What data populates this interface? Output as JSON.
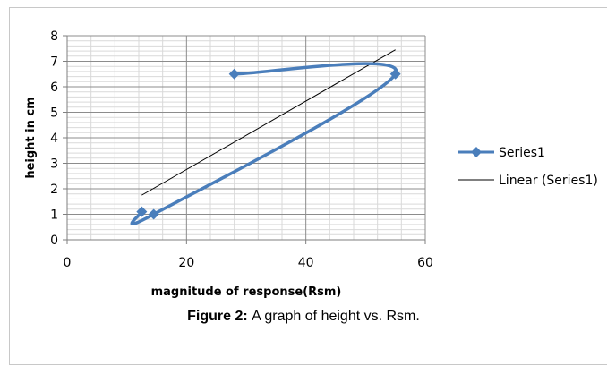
{
  "caption": {
    "label": "Figure 2:",
    "text": "A graph of height vs. Rsm."
  },
  "chart_data": {
    "type": "scatter",
    "xlabel": "magnitude of response(Rsm)",
    "ylabel": "height in cm",
    "xlim": [
      0,
      60
    ],
    "ylim": [
      0,
      8
    ],
    "x_ticks": [
      "0",
      "20",
      "40",
      "60"
    ],
    "y_ticks": [
      "0",
      "1",
      "2",
      "3",
      "4",
      "5",
      "6",
      "7",
      "8"
    ],
    "grid": true,
    "legend_position": "right",
    "series": [
      {
        "name": "Series1",
        "style": "smoothed line with diamond markers",
        "color": "#4a7ebb",
        "points": [
          [
            12.5,
            1.1
          ],
          [
            14.5,
            1.0
          ],
          [
            55,
            6.5
          ],
          [
            28,
            6.5
          ]
        ]
      }
    ],
    "trendline": {
      "name": "Linear (Series1)",
      "color": "#000000",
      "from": [
        12.5,
        1.75
      ],
      "to": [
        55,
        7.45
      ]
    }
  }
}
